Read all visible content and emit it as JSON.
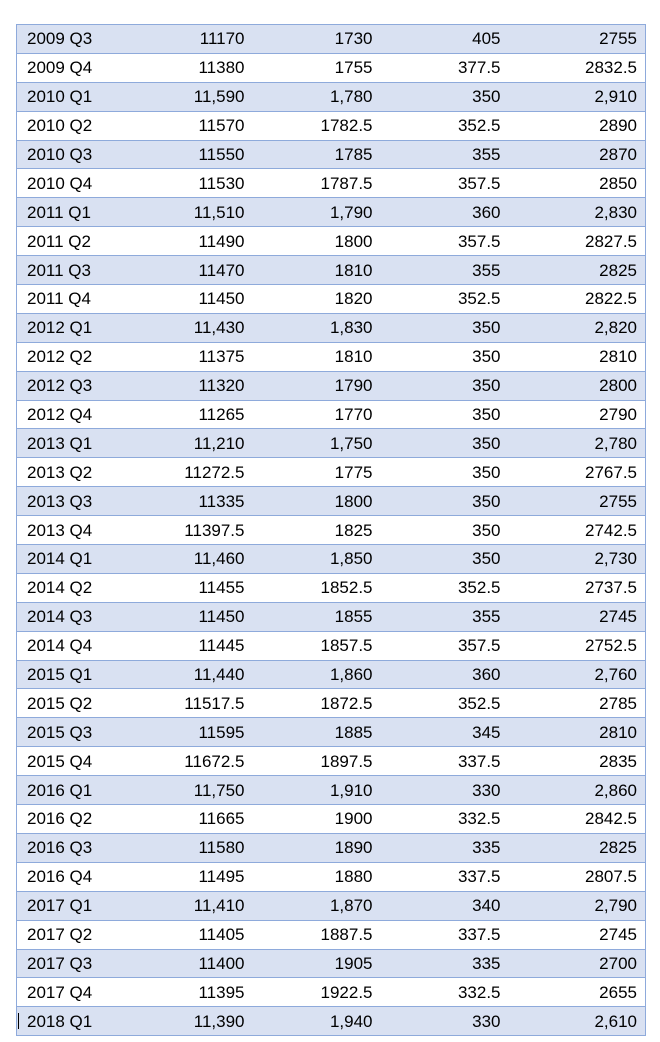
{
  "table": {
    "rows": [
      [
        "2009 Q3",
        "11170",
        "1730",
        "405",
        "2755"
      ],
      [
        "2009 Q4",
        "11380",
        "1755",
        "377.5",
        "2832.5"
      ],
      [
        "2010 Q1",
        "11,590",
        "1,780",
        "350",
        "2,910"
      ],
      [
        "2010 Q2",
        "11570",
        "1782.5",
        "352.5",
        "2890"
      ],
      [
        "2010 Q3",
        "11550",
        "1785",
        "355",
        "2870"
      ],
      [
        "2010 Q4",
        "11530",
        "1787.5",
        "357.5",
        "2850"
      ],
      [
        "2011 Q1",
        "11,510",
        "1,790",
        "360",
        "2,830"
      ],
      [
        "2011 Q2",
        "11490",
        "1800",
        "357.5",
        "2827.5"
      ],
      [
        "2011 Q3",
        "11470",
        "1810",
        "355",
        "2825"
      ],
      [
        "2011 Q4",
        "11450",
        "1820",
        "352.5",
        "2822.5"
      ],
      [
        "2012 Q1",
        "11,430",
        "1,830",
        "350",
        "2,820"
      ],
      [
        "2012 Q2",
        "11375",
        "1810",
        "350",
        "2810"
      ],
      [
        "2012 Q3",
        "11320",
        "1790",
        "350",
        "2800"
      ],
      [
        "2012 Q4",
        "11265",
        "1770",
        "350",
        "2790"
      ],
      [
        "2013 Q1",
        "11,210",
        "1,750",
        "350",
        "2,780"
      ],
      [
        "2013 Q2",
        "11272.5",
        "1775",
        "350",
        "2767.5"
      ],
      [
        "2013 Q3",
        "11335",
        "1800",
        "350",
        "2755"
      ],
      [
        "2013 Q4",
        "11397.5",
        "1825",
        "350",
        "2742.5"
      ],
      [
        "2014 Q1",
        "11,460",
        "1,850",
        "350",
        "2,730"
      ],
      [
        "2014 Q2",
        "11455",
        "1852.5",
        "352.5",
        "2737.5"
      ],
      [
        "2014 Q3",
        "11450",
        "1855",
        "355",
        "2745"
      ],
      [
        "2014 Q4",
        "11445",
        "1857.5",
        "357.5",
        "2752.5"
      ],
      [
        "2015 Q1",
        "11,440",
        "1,860",
        "360",
        "2,760"
      ],
      [
        "2015 Q2",
        "11517.5",
        "1872.5",
        "352.5",
        "2785"
      ],
      [
        "2015 Q3",
        "11595",
        "1885",
        "345",
        "2810"
      ],
      [
        "2015 Q4",
        "11672.5",
        "1897.5",
        "337.5",
        "2835"
      ],
      [
        "2016 Q1",
        "11,750",
        "1,910",
        "330",
        "2,860"
      ],
      [
        "2016 Q2",
        "11665",
        "1900",
        "332.5",
        "2842.5"
      ],
      [
        "2016 Q3",
        "11580",
        "1890",
        "335",
        "2825"
      ],
      [
        "2016 Q4",
        "11495",
        "1880",
        "337.5",
        "2807.5"
      ],
      [
        "2017 Q1",
        "11,410",
        "1,870",
        "340",
        "2,790"
      ],
      [
        "2017 Q2",
        "11405",
        "1887.5",
        "337.5",
        "2745"
      ],
      [
        "2017 Q3",
        "11400",
        "1905",
        "335",
        "2700"
      ],
      [
        "2017 Q4",
        "11395",
        "1922.5",
        "332.5",
        "2655"
      ],
      [
        "2018 Q1",
        "11,390",
        "1,940",
        "330",
        "2,610"
      ]
    ]
  },
  "colors": {
    "band": "#d9e1f2",
    "border": "#8eaadb",
    "background": "#ffffff"
  }
}
